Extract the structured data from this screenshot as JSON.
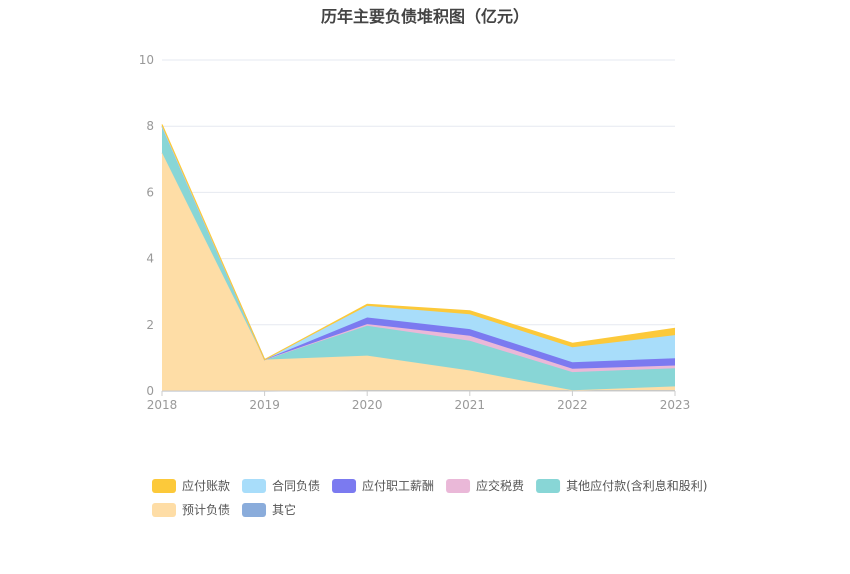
{
  "chart_data": {
    "type": "area",
    "title": "历年主要负债堆积图（亿元）",
    "x": [
      "2018",
      "2019",
      "2020",
      "2021",
      "2022",
      "2023"
    ],
    "ylim": [
      0,
      10
    ],
    "yticks": [
      0,
      2,
      4,
      6,
      8,
      10
    ],
    "grid": true,
    "legend_position": "bottom",
    "stacking_order": [
      "其它",
      "预计负债",
      "其他应付款(含利息和股利)",
      "应交税费",
      "应付职工薪酬",
      "合同负债",
      "应付账款"
    ],
    "series": [
      {
        "name": "应付账款",
        "color": "#fcc93a",
        "values": [
          0.05,
          0.0,
          0.05,
          0.1,
          0.12,
          0.2
        ]
      },
      {
        "name": "合同负债",
        "color": "#a8ddfa",
        "values": [
          0.0,
          0.0,
          0.35,
          0.45,
          0.45,
          0.7
        ]
      },
      {
        "name": "应付职工薪酬",
        "color": "#7b7af0",
        "values": [
          0.0,
          0.0,
          0.2,
          0.2,
          0.2,
          0.22
        ]
      },
      {
        "name": "应交税费",
        "color": "#eab8d8",
        "values": [
          0.0,
          0.0,
          0.05,
          0.15,
          0.1,
          0.08
        ]
      },
      {
        "name": "其他应付款(含利息和股利)",
        "color": "#88d6d6",
        "values": [
          0.8,
          0.0,
          0.9,
          0.9,
          0.55,
          0.55
        ]
      },
      {
        "name": "预计负债",
        "color": "#fedda6",
        "values": [
          7.2,
          0.95,
          1.05,
          0.6,
          0.0,
          0.12
        ]
      },
      {
        "name": "其它",
        "color": "#8aacdb",
        "values": [
          0.0,
          0.0,
          0.02,
          0.02,
          0.02,
          0.02
        ]
      }
    ]
  }
}
